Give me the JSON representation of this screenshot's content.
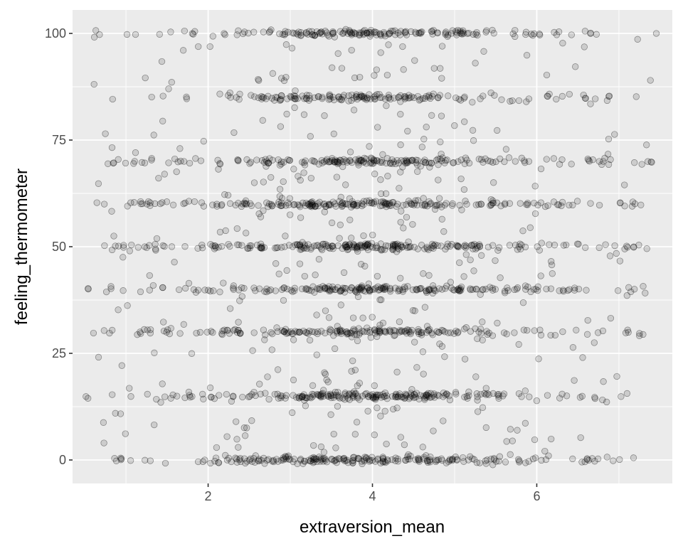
{
  "chart_data": {
    "type": "scatter",
    "title": "",
    "xlabel": "extraversion_mean",
    "ylabel": "feeling_thermometer",
    "xlim": [
      0.35,
      7.65
    ],
    "ylim": [
      -5.5,
      105.5
    ],
    "x_ticks": [
      2,
      4,
      6
    ],
    "x_tick_labels": [
      "2",
      "4",
      "6"
    ],
    "y_ticks": [
      0,
      25,
      50,
      75,
      100
    ],
    "y_tick_labels": [
      "0",
      "25",
      "50",
      "75",
      "100"
    ],
    "grid": true,
    "legend": "none",
    "point_style": "semi-transparent gray circles with dark outline, horizontally and vertically jittered",
    "clusters": [
      {
        "y_center": 100,
        "x_range": [
          0.5,
          7.5
        ],
        "n_points": 170,
        "peak_x": 4.2,
        "y_spread": 0.4,
        "description": "dense band at 100"
      },
      {
        "y_center": 85,
        "x_range": [
          0.9,
          7.3
        ],
        "n_points": 150,
        "peak_x": 4.0,
        "y_spread": 0.4,
        "description": "band at 85"
      },
      {
        "y_center": 70,
        "x_range": [
          0.7,
          7.4
        ],
        "n_points": 190,
        "peak_x": 4.0,
        "y_spread": 0.4,
        "description": "band at 70"
      },
      {
        "y_center": 60,
        "x_range": [
          0.6,
          7.4
        ],
        "n_points": 210,
        "peak_x": 4.0,
        "y_spread": 0.4,
        "description": "band at 60"
      },
      {
        "y_center": 50,
        "x_range": [
          0.6,
          7.4
        ],
        "n_points": 230,
        "peak_x": 4.0,
        "y_spread": 0.4,
        "description": "band at 50"
      },
      {
        "y_center": 40,
        "x_range": [
          0.5,
          7.4
        ],
        "n_points": 200,
        "peak_x": 4.1,
        "y_spread": 0.4,
        "description": "band at 40"
      },
      {
        "y_center": 30,
        "x_range": [
          0.5,
          7.3
        ],
        "n_points": 190,
        "peak_x": 3.9,
        "y_spread": 0.4,
        "description": "band at 30"
      },
      {
        "y_center": 15,
        "x_range": [
          0.5,
          7.4
        ],
        "n_points": 210,
        "peak_x": 3.9,
        "y_spread": 0.4,
        "description": "band at 15"
      },
      {
        "y_center": 0,
        "x_range": [
          0.8,
          7.4
        ],
        "n_points": 220,
        "peak_x": 3.9,
        "y_spread": 0.4,
        "description": "dense band at 0"
      }
    ],
    "scattered_points": {
      "n_points": 420,
      "x_range": [
        0.6,
        7.4
      ],
      "y_range": [
        -1,
        101
      ],
      "description": "sparse jittered points between bands"
    }
  }
}
